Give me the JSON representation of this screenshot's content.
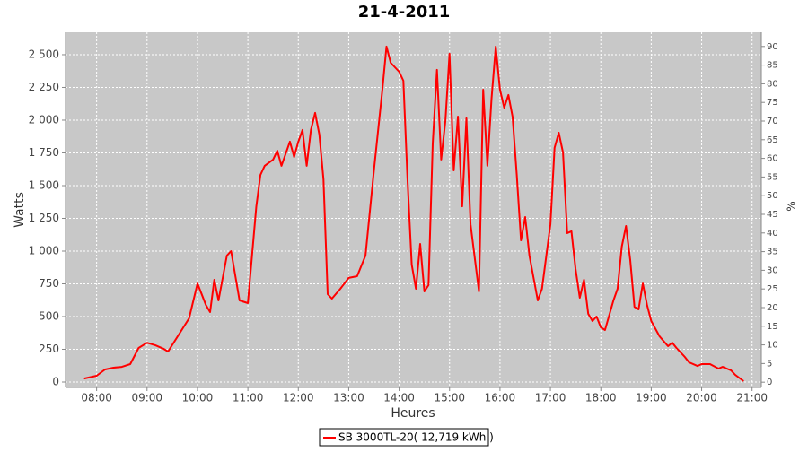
{
  "chart_data": {
    "type": "line",
    "title": "21-4-2011",
    "x_label": "Heures",
    "y_label": "Watts",
    "y2_label": "%",
    "grid": true,
    "legend": "bottom",
    "xlim": [
      "07:23",
      "21:11"
    ],
    "xticks": [
      "08:00",
      "09:00",
      "10:00",
      "11:00",
      "12:00",
      "13:00",
      "14:00",
      "15:00",
      "16:00",
      "17:00",
      "18:00",
      "19:00",
      "20:00",
      "21:00"
    ],
    "ylim": [
      -41,
      2671
    ],
    "yticks": [
      0,
      250,
      500,
      750,
      {
        "value": 1000,
        "label": "1 000"
      },
      {
        "value": 1250,
        "label": "1 250"
      },
      {
        "value": 1500,
        "label": "1 500"
      },
      {
        "value": 1750,
        "label": "1 750"
      },
      {
        "value": 2000,
        "label": "2 000"
      },
      {
        "value": 2250,
        "label": "2 250"
      },
      {
        "value": 2500,
        "label": "2 500"
      }
    ],
    "y2lim": [
      -1.4,
      93.8
    ],
    "y2ticks": [
      0,
      5,
      10,
      15,
      20,
      25,
      30,
      35,
      40,
      45,
      50,
      55,
      60,
      65,
      70,
      75,
      80,
      85,
      90
    ],
    "x": [
      "07:45",
      "08:00",
      "08:10",
      "08:20",
      "08:30",
      "08:40",
      "08:50",
      "09:00",
      "09:10",
      "09:20",
      "09:25",
      "09:40",
      "09:50",
      "10:00",
      "10:10",
      "10:15",
      "10:20",
      "10:25",
      "10:35",
      "10:40",
      "10:50",
      "11:00",
      "11:10",
      "11:15",
      "11:20",
      "11:30",
      "11:35",
      "11:40",
      "11:50",
      "11:55",
      "12:00",
      "12:05",
      "12:10",
      "12:15",
      "12:20",
      "12:25",
      "12:30",
      "12:35",
      "12:40",
      "12:50",
      "13:00",
      "13:10",
      "13:20",
      "13:30",
      "13:40",
      "13:45",
      "13:50",
      "14:00",
      "14:05",
      "14:10",
      "14:15",
      "14:20",
      "14:25",
      "14:30",
      "14:35",
      "14:40",
      "14:45",
      "14:50",
      "14:55",
      "15:00",
      "15:05",
      "15:10",
      "15:15",
      "15:20",
      "15:25",
      "15:35",
      "15:40",
      "15:45",
      "15:50",
      "15:55",
      "16:00",
      "16:05",
      "16:10",
      "16:15",
      "16:20",
      "16:25",
      "16:30",
      "16:35",
      "16:45",
      "16:50",
      "17:00",
      "17:05",
      "17:10",
      "17:15",
      "17:20",
      "17:25",
      "17:30",
      "17:35",
      "17:40",
      "17:45",
      "17:50",
      "17:55",
      "18:00",
      "18:05",
      "18:15",
      "18:20",
      "18:25",
      "18:30",
      "18:35",
      "18:40",
      "18:45",
      "18:50",
      "18:55",
      "19:00",
      "19:10",
      "19:20",
      "19:25",
      "19:30",
      "19:40",
      "19:45",
      "19:55",
      "20:00",
      "20:10",
      "20:20",
      "20:25",
      "20:35",
      "20:40",
      "20:50"
    ],
    "series": [
      {
        "name": "SB 3000TL-20( 12,719 kWh  )",
        "color": "#ff0000",
        "values": [
          27,
          48,
          96,
          110,
          116,
          137,
          260,
          300,
          280,
          253,
          233,
          384,
          486,
          753,
          589,
          534,
          781,
          623,
          966,
          1000,
          623,
          603,
          1342,
          1582,
          1651,
          1699,
          1767,
          1651,
          1836,
          1719,
          1836,
          1925,
          1651,
          1925,
          2055,
          1890,
          1548,
          671,
          637,
          712,
          795,
          808,
          966,
          1616,
          2233,
          2562,
          2438,
          2370,
          2301,
          1548,
          897,
          712,
          1055,
          692,
          740,
          1822,
          2384,
          1699,
          1993,
          2507,
          1616,
          2027,
          1342,
          2014,
          1205,
          692,
          2233,
          1651,
          2164,
          2562,
          2233,
          2096,
          2192,
          2027,
          1582,
          1082,
          1260,
          966,
          623,
          712,
          1205,
          1788,
          1904,
          1753,
          1137,
          1151,
          863,
          644,
          781,
          521,
          466,
          500,
          418,
          397,
          623,
          712,
          1034,
          1192,
          932,
          575,
          555,
          753,
          589,
          466,
          349,
          274,
          301,
          260,
          192,
          151,
          123,
          137,
          137,
          103,
          116,
          89,
          55,
          7
        ]
      }
    ]
  }
}
